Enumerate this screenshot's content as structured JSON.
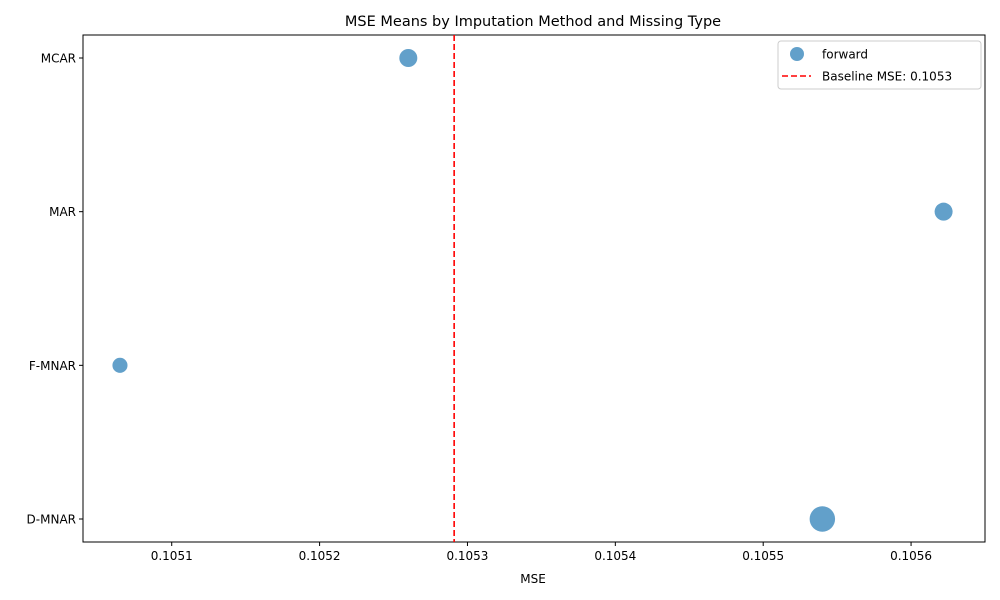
{
  "chart_data": {
    "type": "scatter",
    "title": "MSE Means by Imputation Method and Missing Type",
    "xlabel": "MSE",
    "ylabel": "",
    "xlim": [
      0.10504,
      0.10565
    ],
    "x_ticks": [
      0.1051,
      0.1052,
      0.1053,
      0.1054,
      0.1055,
      0.1056
    ],
    "x_tick_labels": [
      "0.1051",
      "0.1052",
      "0.1053",
      "0.1054",
      "0.1055",
      "0.1056"
    ],
    "categories": [
      "MCAR",
      "MAR",
      "F-MNAR",
      "D-MNAR"
    ],
    "series": [
      {
        "name": "forward",
        "color": "#1f77b4",
        "points": [
          {
            "category": "MCAR",
            "x": 0.10526,
            "size": 1.0
          },
          {
            "category": "MAR",
            "x": 0.105622,
            "size": 1.0
          },
          {
            "category": "F-MNAR",
            "x": 0.105065,
            "size": 0.7
          },
          {
            "category": "D-MNAR",
            "x": 0.10554,
            "size": 2.0
          }
        ]
      }
    ],
    "baseline": {
      "x": 0.105291,
      "label": "Baseline MSE: 0.1053",
      "color": "#ff0000",
      "style": "dashed"
    },
    "legend": {
      "position": "top-right",
      "entries": [
        "forward",
        "Baseline MSE: 0.1053"
      ]
    },
    "grid": false
  }
}
